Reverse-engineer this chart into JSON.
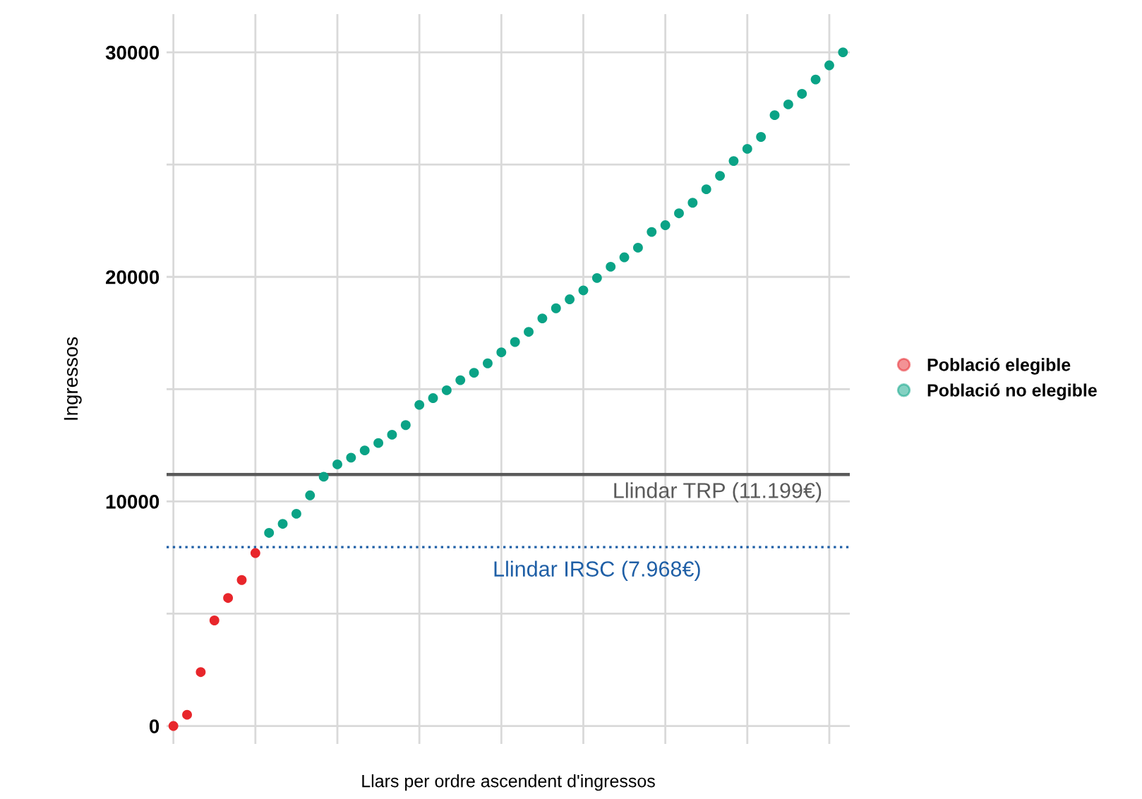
{
  "chart_data": {
    "type": "scatter",
    "xlabel": "Llars per ordre ascendent d'ingressos",
    "ylabel": "Ingressos",
    "categories": [
      null,
      null,
      null,
      null,
      null,
      null,
      null,
      null,
      null,
      null,
      null,
      null,
      null,
      null,
      null,
      null,
      null,
      null,
      null,
      null,
      null,
      null,
      null,
      null,
      null,
      null,
      null,
      null,
      null,
      null,
      null,
      null,
      null,
      null,
      null,
      null,
      null,
      null,
      null,
      null,
      null,
      null,
      null,
      null,
      null,
      null,
      null,
      null,
      null,
      null
    ],
    "series": [
      {
        "name": "Població elegible",
        "color": "#e8262b",
        "values": [
          0,
          500,
          2400,
          4700,
          5700,
          6500,
          7700,
          null,
          null,
          null,
          null,
          null,
          null,
          null,
          null,
          null,
          null,
          null,
          null,
          null,
          null,
          null,
          null,
          null,
          null,
          null,
          null,
          null,
          null,
          null,
          null,
          null,
          null,
          null,
          null,
          null,
          null,
          null,
          null,
          null,
          null,
          null,
          null,
          null,
          null,
          null,
          null,
          null,
          null,
          null
        ]
      },
      {
        "name": "Població no elegible",
        "color": "#0aa386",
        "values": [
          null,
          null,
          null,
          null,
          null,
          null,
          null,
          8600,
          9000,
          9450,
          10270,
          11100,
          11650,
          11950,
          12270,
          12600,
          12970,
          13400,
          14300,
          14600,
          14950,
          15400,
          15730,
          16150,
          16640,
          17100,
          17550,
          18150,
          18600,
          19000,
          19400,
          19950,
          20450,
          20870,
          21300,
          22000,
          22300,
          22830,
          23300,
          23900,
          24500,
          25160,
          25700,
          26230,
          27200,
          27680,
          28150,
          28790,
          29420,
          30000
        ]
      }
    ],
    "ylim": [
      -800,
      31700
    ],
    "yticks": [
      0,
      {
        "value": 5000,
        "label": null
      },
      10000,
      {
        "value": 15000,
        "label": null
      },
      20000,
      {
        "value": 25000,
        "label": null
      },
      30000
    ],
    "ref_lines": [
      {
        "axis": "y",
        "value": 11199,
        "label": "Llindar TRP (11.199€)",
        "color": "#5a5a5a",
        "line_style": "solid"
      },
      {
        "axis": "y",
        "value": 7968,
        "label": "Llindar IRSC (7.968€)",
        "color": "#1f5fa6",
        "line_style": "dotted"
      }
    ],
    "grid": true,
    "legend": "right",
    "marker": "circle"
  }
}
